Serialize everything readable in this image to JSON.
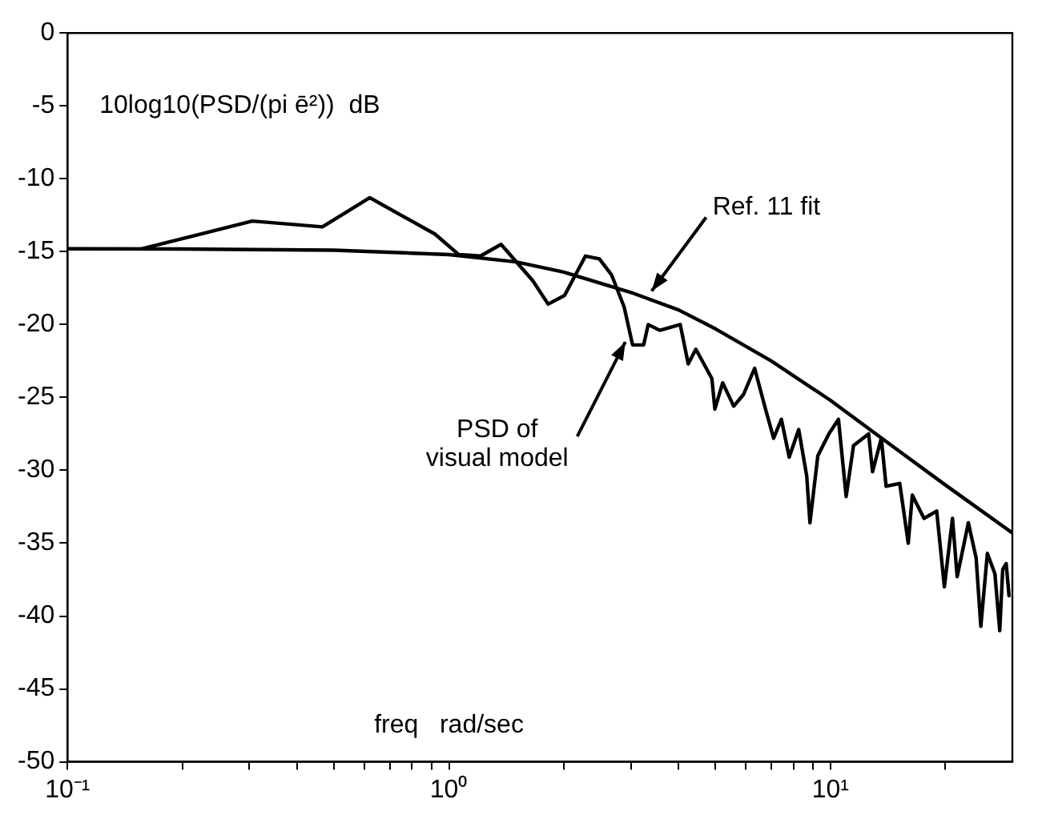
{
  "chart_data": {
    "type": "line",
    "xlabel": "freq   rad/sec",
    "ylabel": "10log10(PSD/(pi ē²))  dB",
    "log": "x",
    "grid": false,
    "legend": false,
    "marker": "none",
    "line_style": "solid",
    "xlim": [
      0.1,
      30
    ],
    "ylim": [
      -50,
      0
    ],
    "xticks": [
      {
        "value": 0.1,
        "label": "10⁻¹"
      },
      {
        "value": 0.2,
        "label": null
      },
      {
        "value": 0.3,
        "label": null
      },
      {
        "value": 0.4,
        "label": null
      },
      {
        "value": 0.5,
        "label": null
      },
      {
        "value": 0.6,
        "label": null
      },
      {
        "value": 0.7,
        "label": null
      },
      {
        "value": 0.8,
        "label": null
      },
      {
        "value": 0.9,
        "label": null
      },
      {
        "value": 1,
        "label": "10⁰"
      },
      {
        "value": 2,
        "label": null
      },
      {
        "value": 3,
        "label": null
      },
      {
        "value": 4,
        "label": null
      },
      {
        "value": 5,
        "label": null
      },
      {
        "value": 6,
        "label": null
      },
      {
        "value": 7,
        "label": null
      },
      {
        "value": 8,
        "label": null
      },
      {
        "value": 9,
        "label": null
      },
      {
        "value": 10,
        "label": "10¹"
      },
      {
        "value": 20,
        "label": null
      }
    ],
    "yticks": [
      -50,
      -45,
      -40,
      -35,
      -30,
      -25,
      -20,
      -15,
      -10,
      -5,
      0
    ],
    "series": [
      {
        "color": "#000000",
        "x": [
          0.157,
          0.305,
          0.466,
          0.62,
          0.92,
          1.06,
          1.21,
          1.37,
          1.66,
          1.82,
          2.01,
          2.28,
          2.48,
          2.67,
          2.88,
          3.03,
          3.24,
          3.33,
          3.57,
          4.04,
          4.24,
          4.44,
          4.89,
          4.98,
          5.22,
          5.58,
          5.92,
          6.33,
          6.76,
          7.1,
          7.44,
          7.8,
          8.26,
          8.67,
          8.84,
          9.27,
          9.91,
          10.5,
          11,
          11.5,
          12.6,
          12.9,
          13.6,
          14,
          15.2,
          16,
          16.4,
          17.6,
          19,
          19.9,
          20.9,
          21.5,
          23,
          24.1,
          24.8,
          25.8,
          27,
          27.8,
          28.3,
          28.9,
          29.4
        ],
        "values": [
          -14.8,
          -12.9,
          -13.3,
          -11.3,
          -13.8,
          -15.2,
          -15.3,
          -14.5,
          -17,
          -18.6,
          -18,
          -15.3,
          -15.5,
          -16.6,
          -18.8,
          -21.4,
          -21.4,
          -20,
          -20.4,
          -20,
          -22.7,
          -21.7,
          -23.7,
          -25.8,
          -24,
          -25.6,
          -24.8,
          -23,
          -25.8,
          -27.8,
          -26.5,
          -29.1,
          -27.2,
          -30.4,
          -33.6,
          -29,
          -27.5,
          -26.5,
          -31.8,
          -28.3,
          -27.5,
          -30.1,
          -27.8,
          -31.1,
          -30.9,
          -35,
          -31.7,
          -33.3,
          -32.8,
          -38,
          -33.3,
          -37.3,
          -33.6,
          -36,
          -40.7,
          -35.7,
          -37.1,
          -41,
          -36.8,
          -36.4,
          -38.6
        ]
      },
      {
        "color": "#000000",
        "x": [
          0.1,
          0.2,
          0.5,
          1,
          1.5,
          2,
          3,
          4,
          5,
          7,
          10,
          15,
          20,
          30
        ],
        "values": [
          -14.8,
          -14.82,
          -14.9,
          -15.2,
          -15.7,
          -16.4,
          -17.8,
          -19,
          -20.3,
          -22.5,
          -25.2,
          -28.6,
          -31,
          -34.3
        ]
      }
    ],
    "annotations": [
      {
        "text": "Ref. 11 fit",
        "x": 3.4,
        "y": -17.7
      },
      {
        "text": "PSD of\nvisual model",
        "x": 2.9,
        "y": -21.2
      }
    ]
  }
}
